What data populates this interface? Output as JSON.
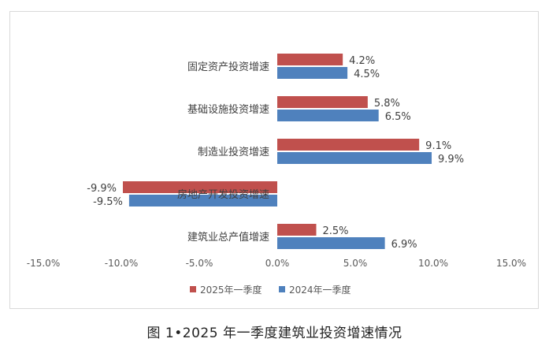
{
  "chart_data": {
    "type": "bar",
    "orientation": "horizontal",
    "categories": [
      "固定资产投资增速",
      "基础设施投资增速",
      "制造业投资增速",
      "房地产开发投资增速",
      "建筑业总产值增速"
    ],
    "series": [
      {
        "name": "2025年一季度",
        "color": "#c0504d",
        "values": [
          4.2,
          5.8,
          9.1,
          -9.9,
          2.5
        ],
        "labels": [
          "4.2%",
          "5.8%",
          "9.1%",
          "-9.9%",
          "2.5%"
        ]
      },
      {
        "name": "2024年一季度",
        "color": "#4f81bd",
        "values": [
          4.5,
          6.5,
          9.9,
          -9.5,
          6.9
        ],
        "labels": [
          "4.5%",
          "6.5%",
          "9.9%",
          "-9.5%",
          "6.9%"
        ]
      }
    ],
    "xlim": [
      -15,
      15
    ],
    "xticks": [
      -15,
      -10,
      -5,
      0,
      5,
      10,
      15
    ],
    "xtick_labels": [
      "-15.0%",
      "-10.0%",
      "-5.0%",
      "0.0%",
      "5.0%",
      "10.0%",
      "15.0%"
    ],
    "grid": false,
    "legend_position": "bottom",
    "caption": "图 1•2025 年一季度建筑业投资增速情况"
  }
}
